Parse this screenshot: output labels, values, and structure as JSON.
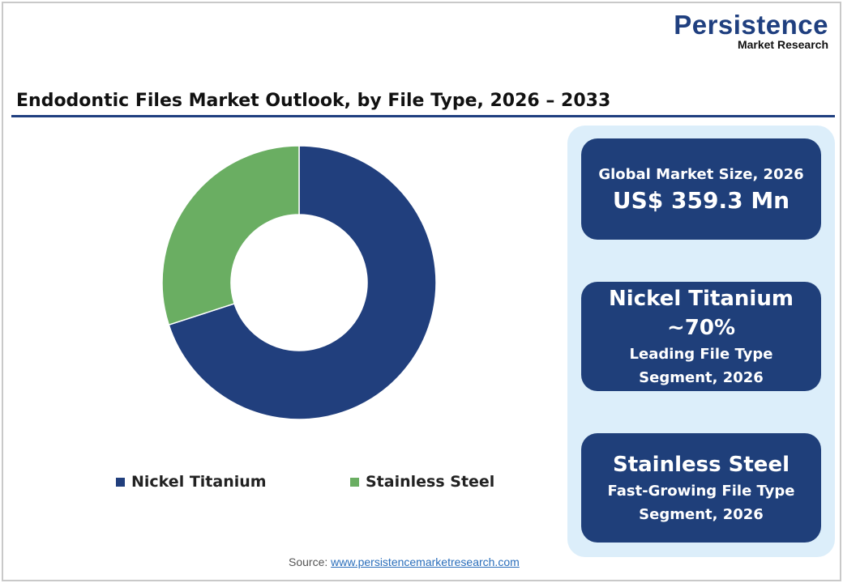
{
  "logo": {
    "line1": "Persistence",
    "line2": "Market Research"
  },
  "title": "Endodontic Files Market Outlook, by File Type, 2026 – 2033",
  "chart_data": {
    "type": "pie",
    "variant": "donut",
    "title": "Endodontic Files Market Outlook, by File Type, 2026 – 2033",
    "categories": [
      "Nickel Titanium",
      "Stainless Steel"
    ],
    "values": [
      70,
      30
    ],
    "colors": [
      "#213f7d",
      "#6aae62"
    ],
    "legend": "bottom"
  },
  "cards": [
    {
      "label": "Global Market Size, 2026",
      "value": "US$ 359.3 Mn"
    },
    {
      "name": "Nickel Titanium",
      "value": "~70%",
      "desc1": "Leading File Type",
      "desc2": "Segment, 2026"
    },
    {
      "name": "Stainless Steel",
      "desc1": "Fast-Growing File Type",
      "desc2": "Segment, 2026"
    }
  ],
  "source": {
    "label": "Source:",
    "link": "www.persistencemarketresearch.com"
  }
}
